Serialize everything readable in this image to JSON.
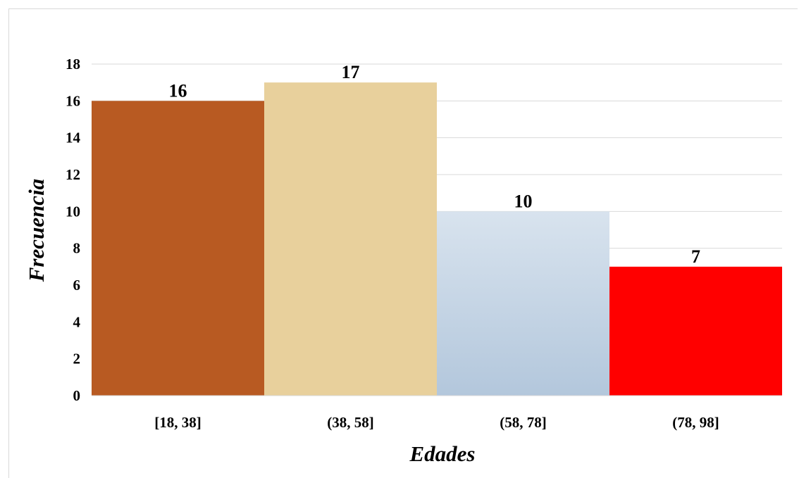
{
  "chart_data": {
    "type": "bar",
    "categories": [
      "[18, 38]",
      "(38, 58]",
      "(58, 78]",
      "(78, 98]"
    ],
    "values": [
      16,
      17,
      10,
      7
    ],
    "bar_colors": [
      "#b85a22",
      "#e8d09c",
      "#c6d5e4",
      "#ff0000"
    ],
    "xlabel": "Edades",
    "ylabel": "Frecuencia",
    "ylim": [
      0,
      18
    ],
    "yticks": [
      0,
      2,
      4,
      6,
      8,
      10,
      12,
      14,
      16,
      18
    ],
    "grid": true,
    "legend": "none"
  }
}
